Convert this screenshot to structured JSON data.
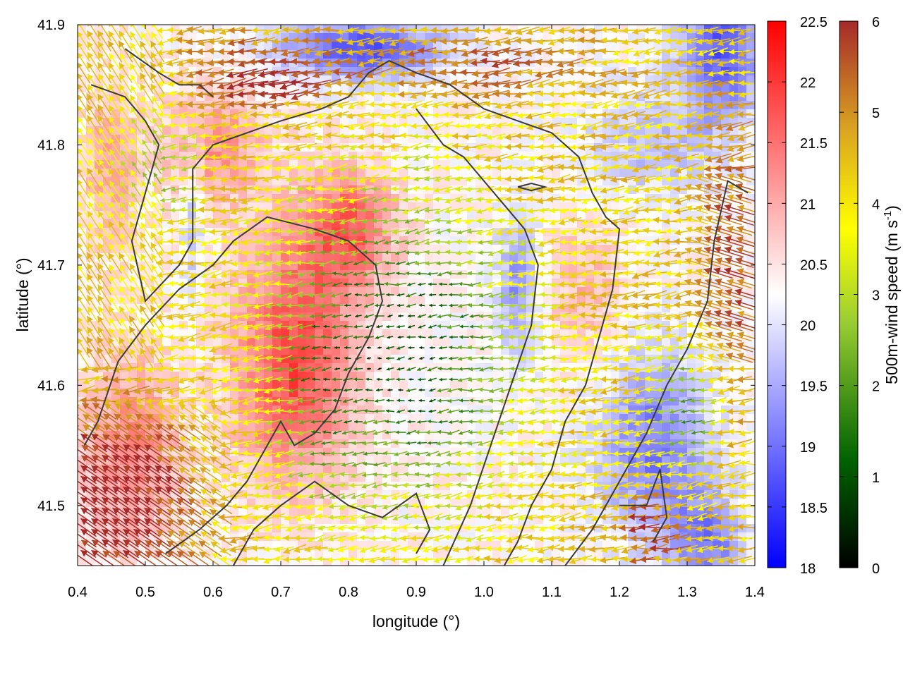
{
  "chart_data": {
    "type": "heatmap",
    "title": "",
    "xlabel": "longitude (°)",
    "ylabel": "latitude (°)",
    "xlim": [
      0.4,
      1.4
    ],
    "ylim": [
      41.45,
      41.9
    ],
    "xticks": [
      "0.4",
      "0.5",
      "0.6",
      "0.7",
      "0.8",
      "0.9",
      "1.0",
      "1.1",
      "1.2",
      "1.3",
      "1.4"
    ],
    "yticks": [
      "41.5",
      "41.6",
      "41.7",
      "41.8",
      "41.9"
    ],
    "temperature_colorbar": {
      "range": [
        18,
        22.5
      ],
      "ticks": [
        "18",
        "18.5",
        "19",
        "19.5",
        "20",
        "20.5",
        "21",
        "21.5",
        "22",
        "22.5"
      ],
      "colors": [
        "#0000ff",
        "#ffffff",
        "#ff0000"
      ]
    },
    "wind_colorbar": {
      "label_prefix": "500m-wind speed (m s",
      "label_exponent": "-1",
      "label_suffix": ")",
      "range": [
        0,
        6
      ],
      "ticks": [
        "0",
        "1",
        "2",
        "3",
        "4",
        "5",
        "6"
      ],
      "colors": [
        "#000000",
        "#006400",
        "#9acd32",
        "#ffff00",
        "#daa520",
        "#a52a2a"
      ]
    },
    "contours": [
      [
        [
          0.47,
          41.88
        ],
        [
          0.52,
          41.86
        ],
        [
          0.55,
          41.85
        ],
        [
          0.58,
          41.85
        ],
        [
          0.6,
          41.84
        ]
      ],
      [
        [
          0.42,
          41.85
        ],
        [
          0.47,
          41.84
        ],
        [
          0.5,
          41.82
        ],
        [
          0.52,
          41.8
        ],
        [
          0.5,
          41.76
        ],
        [
          0.48,
          41.72
        ],
        [
          0.5,
          41.67
        ],
        [
          0.55,
          41.7
        ],
        [
          0.57,
          41.72
        ],
        [
          0.57,
          41.78
        ],
        [
          0.6,
          41.8
        ],
        [
          0.65,
          41.81
        ],
        [
          0.7,
          41.82
        ],
        [
          0.76,
          41.83
        ],
        [
          0.8,
          41.84
        ],
        [
          0.83,
          41.86
        ],
        [
          0.86,
          41.87
        ],
        [
          0.9,
          41.86
        ],
        [
          0.95,
          41.85
        ],
        [
          1.0,
          41.83
        ],
        [
          1.05,
          41.82
        ],
        [
          1.1,
          41.81
        ],
        [
          1.14,
          41.79
        ],
        [
          1.16,
          41.76
        ],
        [
          1.18,
          41.74
        ],
        [
          1.2,
          41.73
        ],
        [
          1.19,
          41.68
        ],
        [
          1.17,
          41.64
        ],
        [
          1.15,
          41.6
        ],
        [
          1.12,
          41.57
        ],
        [
          1.1,
          41.53
        ],
        [
          1.07,
          41.5
        ],
        [
          1.05,
          41.47
        ],
        [
          1.03,
          41.45
        ]
      ],
      [
        [
          0.41,
          41.55
        ],
        [
          0.43,
          41.57
        ],
        [
          0.46,
          41.62
        ],
        [
          0.5,
          41.65
        ],
        [
          0.55,
          41.68
        ],
        [
          0.6,
          41.7
        ],
        [
          0.63,
          41.72
        ],
        [
          0.68,
          41.74
        ],
        [
          0.75,
          41.73
        ],
        [
          0.8,
          41.72
        ],
        [
          0.84,
          41.7
        ],
        [
          0.85,
          41.67
        ],
        [
          0.83,
          41.64
        ],
        [
          0.8,
          41.61
        ],
        [
          0.78,
          41.58
        ],
        [
          0.75,
          41.56
        ],
        [
          0.72,
          41.55
        ],
        [
          0.7,
          41.57
        ],
        [
          0.68,
          41.55
        ],
        [
          0.65,
          41.52
        ],
        [
          0.62,
          41.5
        ],
        [
          0.58,
          41.48
        ],
        [
          0.53,
          41.46
        ]
      ],
      [
        [
          0.94,
          41.45
        ],
        [
          0.98,
          41.5
        ],
        [
          1.01,
          41.55
        ],
        [
          1.04,
          41.6
        ],
        [
          1.07,
          41.65
        ],
        [
          1.08,
          41.7
        ],
        [
          1.06,
          41.73
        ],
        [
          1.03,
          41.75
        ],
        [
          1.0,
          41.77
        ],
        [
          0.97,
          41.79
        ],
        [
          0.94,
          41.8
        ],
        [
          0.9,
          41.83
        ]
      ],
      [
        [
          1.12,
          41.45
        ],
        [
          1.16,
          41.48
        ],
        [
          1.2,
          41.52
        ],
        [
          1.24,
          41.56
        ],
        [
          1.27,
          41.6
        ],
        [
          1.3,
          41.63
        ],
        [
          1.33,
          41.67
        ],
        [
          1.34,
          41.72
        ],
        [
          1.36,
          41.77
        ],
        [
          1.39,
          41.76
        ]
      ],
      [
        [
          1.2,
          41.5
        ],
        [
          1.24,
          41.5
        ],
        [
          1.26,
          41.53
        ],
        [
          1.27,
          41.49
        ],
        [
          1.25,
          41.47
        ]
      ],
      [
        [
          1.05,
          41.765
        ],
        [
          1.07,
          41.762
        ],
        [
          1.09,
          41.765
        ],
        [
          1.07,
          41.768
        ],
        [
          1.05,
          41.765
        ]
      ],
      [
        [
          0.63,
          41.45
        ],
        [
          0.66,
          41.48
        ],
        [
          0.7,
          41.5
        ],
        [
          0.75,
          41.52
        ],
        [
          0.8,
          41.5
        ],
        [
          0.85,
          41.49
        ],
        [
          0.9,
          41.51
        ],
        [
          0.92,
          41.48
        ],
        [
          0.9,
          41.46
        ]
      ]
    ]
  }
}
